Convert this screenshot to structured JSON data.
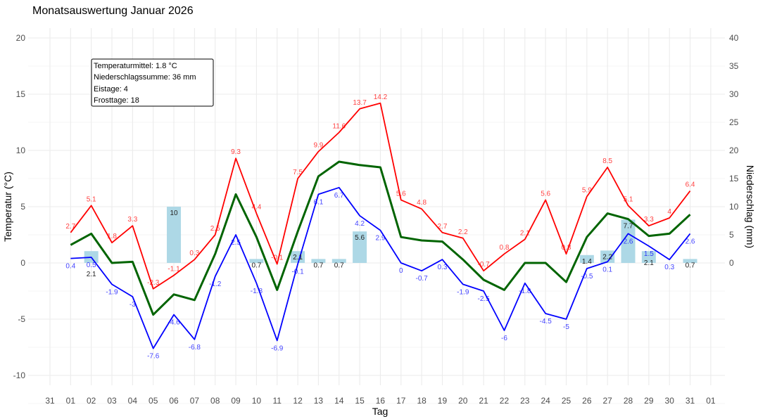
{
  "chart_data": {
    "type": "line",
    "title": "Monatsauswertung Januar 2026",
    "xlabel": "Tag",
    "ylabel": "Temperatur (°C)",
    "ylabel_right": "Niederschlag (mm)",
    "x_ticks": [
      "31",
      "01",
      "02",
      "03",
      "04",
      "05",
      "06",
      "07",
      "08",
      "09",
      "10",
      "11",
      "12",
      "13",
      "14",
      "15",
      "16",
      "17",
      "18",
      "19",
      "20",
      "21",
      "22",
      "23",
      "24",
      "25",
      "26",
      "27",
      "28",
      "29",
      "30",
      "31",
      "01"
    ],
    "days": [
      "01",
      "02",
      "03",
      "04",
      "05",
      "06",
      "07",
      "08",
      "09",
      "10",
      "11",
      "12",
      "13",
      "14",
      "15",
      "16",
      "17",
      "18",
      "19",
      "20",
      "21",
      "22",
      "23",
      "24",
      "25",
      "26",
      "27",
      "28",
      "29",
      "30",
      "31"
    ],
    "ylim": [
      -12,
      21
    ],
    "y_ticks": [
      -10,
      -5,
      0,
      5,
      10,
      15,
      20
    ],
    "y_right_ticks": [
      0,
      5,
      10,
      15,
      20,
      25,
      30,
      35,
      40
    ],
    "grid": true,
    "series": [
      {
        "key": "max",
        "color": "#ff0000",
        "labeled": true,
        "values": [
          2.7,
          5.1,
          1.8,
          3.3,
          -2.3,
          -1.1,
          0.3,
          2.5,
          9.3,
          4.4,
          -0.1,
          7.5,
          9.9,
          11.6,
          13.7,
          14.2,
          5.6,
          4.8,
          2.7,
          2.2,
          -0.7,
          0.8,
          2.1,
          5.6,
          0.8,
          5.9,
          8.5,
          5.1,
          3.3,
          4,
          6.4
        ]
      },
      {
        "key": "mean",
        "color": "#006400",
        "labeled": false,
        "values": [
          1.6,
          2.6,
          0,
          0.1,
          -4.6,
          -2.8,
          -3.3,
          0.8,
          6.1,
          2.3,
          -2.4,
          2.8,
          7.7,
          9.0,
          8.7,
          8.5,
          2.3,
          2.0,
          1.9,
          0.3,
          -1.5,
          -2.4,
          0,
          0,
          -1.7,
          2.3,
          4.4,
          3.9,
          2.4,
          2.6,
          4.3
        ]
      },
      {
        "key": "min",
        "color": "#0000ff",
        "labeled": true,
        "values": [
          0.4,
          0.5,
          -1.9,
          -3,
          -7.6,
          -4.6,
          -6.8,
          -1.2,
          2.5,
          -1.8,
          -6.9,
          -0.1,
          6.1,
          6.7,
          4.2,
          2.9,
          0,
          -0.7,
          0.3,
          -1.9,
          -2.5,
          -6,
          -1.8,
          -4.5,
          -5,
          -0.5,
          0.1,
          2.6,
          1.5,
          0.3,
          2.6
        ]
      }
    ],
    "precipitation": {
      "color": "#add8e6",
      "values": [
        0,
        2.1,
        0,
        0,
        0,
        10,
        0,
        0,
        0,
        0.7,
        0,
        2.1,
        0.7,
        0.7,
        5.6,
        0,
        0,
        0,
        0,
        0,
        0,
        0,
        0,
        0,
        0,
        1.4,
        2.2,
        7.7,
        2.1,
        0,
        0.7
      ]
    },
    "summary": [
      "Temperaturmittel: 1.8 °C",
      "Niederschlagssumme: 36 mm",
      "Eistage: 4",
      "Frosttage: 18"
    ]
  }
}
